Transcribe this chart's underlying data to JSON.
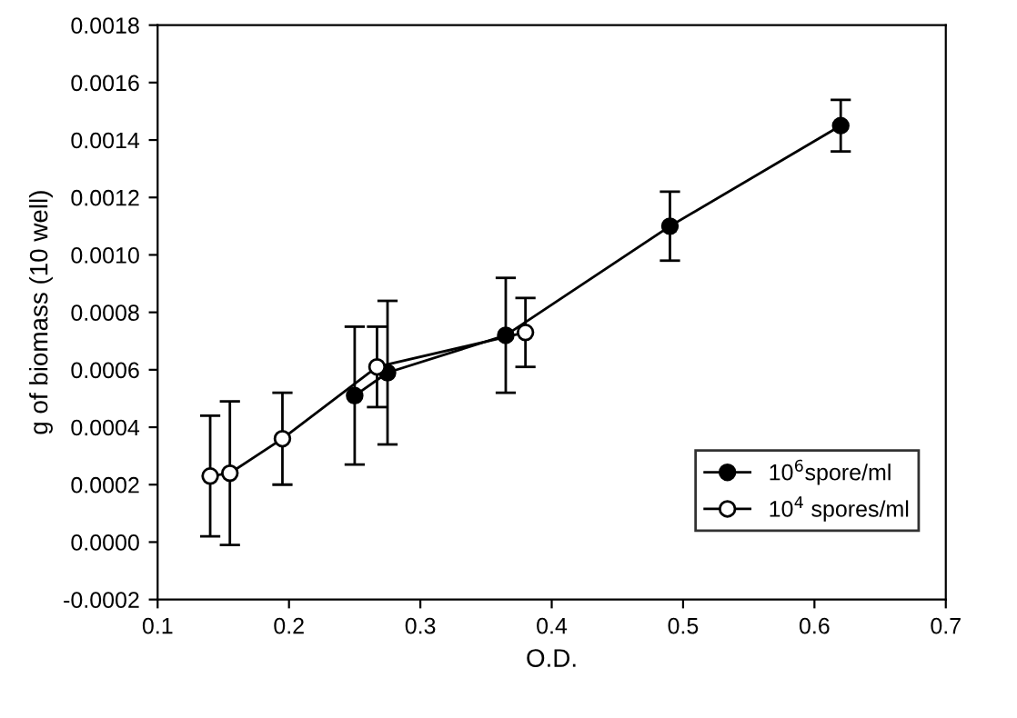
{
  "chart_data": {
    "type": "line",
    "xlabel": "O.D.",
    "ylabel": "g of biomass (10 well)",
    "xlim": [
      0.1,
      0.7
    ],
    "xticks": [
      0.1,
      0.2,
      0.3,
      0.4,
      0.5,
      0.6,
      0.7
    ],
    "ylim": [
      -0.0002,
      0.0018
    ],
    "yticks": [
      {
        "value": -0.0002,
        "label": "-0.0002"
      },
      {
        "value": 0,
        "label": "0.0000"
      },
      {
        "value": 0.0002,
        "label": "0.0002"
      },
      {
        "value": 0.0004,
        "label": "0.0004"
      },
      {
        "value": 0.0006,
        "label": "0.0006"
      },
      {
        "value": 0.0008,
        "label": "0.0008"
      },
      {
        "value": 0.001,
        "label": "0.0010"
      },
      {
        "value": 0.0012,
        "label": "0.0012"
      },
      {
        "value": 0.0014,
        "label": "0.0014"
      },
      {
        "value": 0.0016,
        "label": "0.0016"
      },
      {
        "value": 0.0018,
        "label": "0.0018"
      }
    ],
    "grid": false,
    "legend": "bottom right",
    "marker": "circle",
    "line_style": "solid",
    "series": [
      {
        "name": "10$^{6}$spore/ml",
        "color": "#000000",
        "x": [
          0.25,
          0.275,
          0.365,
          0.49,
          0.62
        ],
        "values": [
          0.00051,
          0.00059,
          0.00072,
          0.0011,
          0.00145
        ],
        "errors": [
          [
            0.00027,
            0.00075
          ],
          [
            0.00034,
            0.00084
          ],
          [
            0.00052,
            0.00092
          ],
          [
            0.00098,
            0.00122
          ],
          [
            0.00136,
            0.00154
          ]
        ]
      },
      {
        "name": "10$^{4}$ spores/ml",
        "color": "#ffffff",
        "x": [
          0.14,
          0.155,
          0.195,
          0.267,
          0.38
        ],
        "values": [
          0.00023,
          0.00024,
          0.00036,
          0.00061,
          0.00073
        ],
        "errors": [
          [
            2e-05,
            0.00044
          ],
          [
            -1e-05,
            0.00049
          ],
          [
            0.0002,
            0.00052
          ],
          [
            0.00047,
            0.00075
          ],
          [
            0.00061,
            0.00085
          ]
        ]
      }
    ]
  }
}
